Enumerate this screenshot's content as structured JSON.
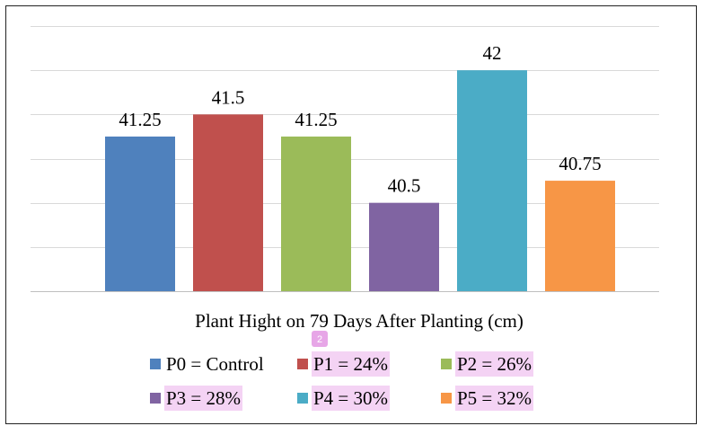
{
  "chart_data": {
    "type": "bar",
    "categories": [
      "P0 = Control",
      "P1 = 24%",
      "P2 = 26%",
      "P3 = 28%",
      "P4 = 30%",
      "P5 = 32%"
    ],
    "values": [
      41.25,
      41.5,
      41.25,
      40.5,
      42,
      40.75
    ],
    "value_labels": [
      "41.25",
      "41.5",
      "41.25",
      "40.5",
      "42",
      "40.75"
    ],
    "colors": [
      "#4f81bd",
      "#c0504d",
      "#9bbb59",
      "#8064a2",
      "#4bacc6",
      "#f79646"
    ],
    "xlabel": "Plant Hight on 79 Days After Planting (cm)",
    "ylabel": "",
    "ylim": [
      39.5,
      42.5
    ],
    "y_gridlines": [
      39.5,
      40,
      40.5,
      41,
      41.5,
      42,
      42.5
    ],
    "grid": true,
    "legend": {
      "placement": "bottom",
      "entries": [
        "P0 = Control",
        "P1 = 24%",
        "P2 = 26%",
        "P3 = 28%",
        "P4 = 30%",
        "P5 = 32%"
      ]
    }
  },
  "overlay_badge": "2"
}
